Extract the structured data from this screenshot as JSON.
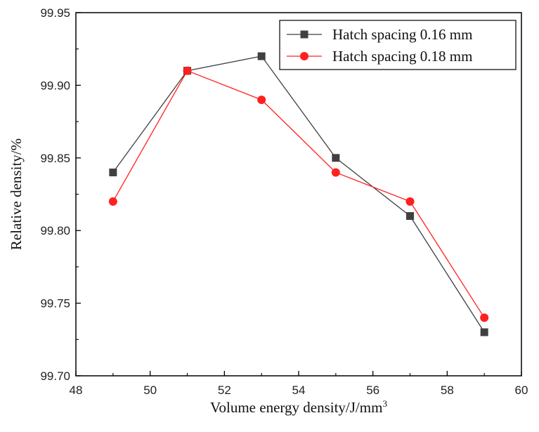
{
  "chart_data": {
    "type": "line",
    "title": "",
    "xlabel": "Volume energy density/J/mm",
    "xlabel_superscript": "3",
    "ylabel": "Relative density/%",
    "xlim": [
      48,
      60
    ],
    "ylim": [
      99.7,
      99.95
    ],
    "x_ticks": [
      "48",
      "50",
      "52",
      "54",
      "56",
      "58",
      "60"
    ],
    "y_ticks": [
      "99.70",
      "99.75",
      "99.80",
      "99.85",
      "99.90",
      "99.95"
    ],
    "grid": false,
    "legend_position": "top-right",
    "series": [
      {
        "name": "Hatch spacing 0.16 mm",
        "color": "#404040",
        "marker": "square",
        "x": [
          49,
          51,
          53,
          55,
          57,
          59
        ],
        "values": [
          99.84,
          99.91,
          99.92,
          99.85,
          99.81,
          99.73
        ]
      },
      {
        "name": "Hatch spacing 0.18 mm",
        "color": "#ff2020",
        "marker": "circle",
        "x": [
          49,
          51,
          53,
          55,
          57,
          59
        ],
        "values": [
          99.82,
          99.91,
          99.89,
          99.84,
          99.82,
          99.74
        ]
      }
    ]
  }
}
